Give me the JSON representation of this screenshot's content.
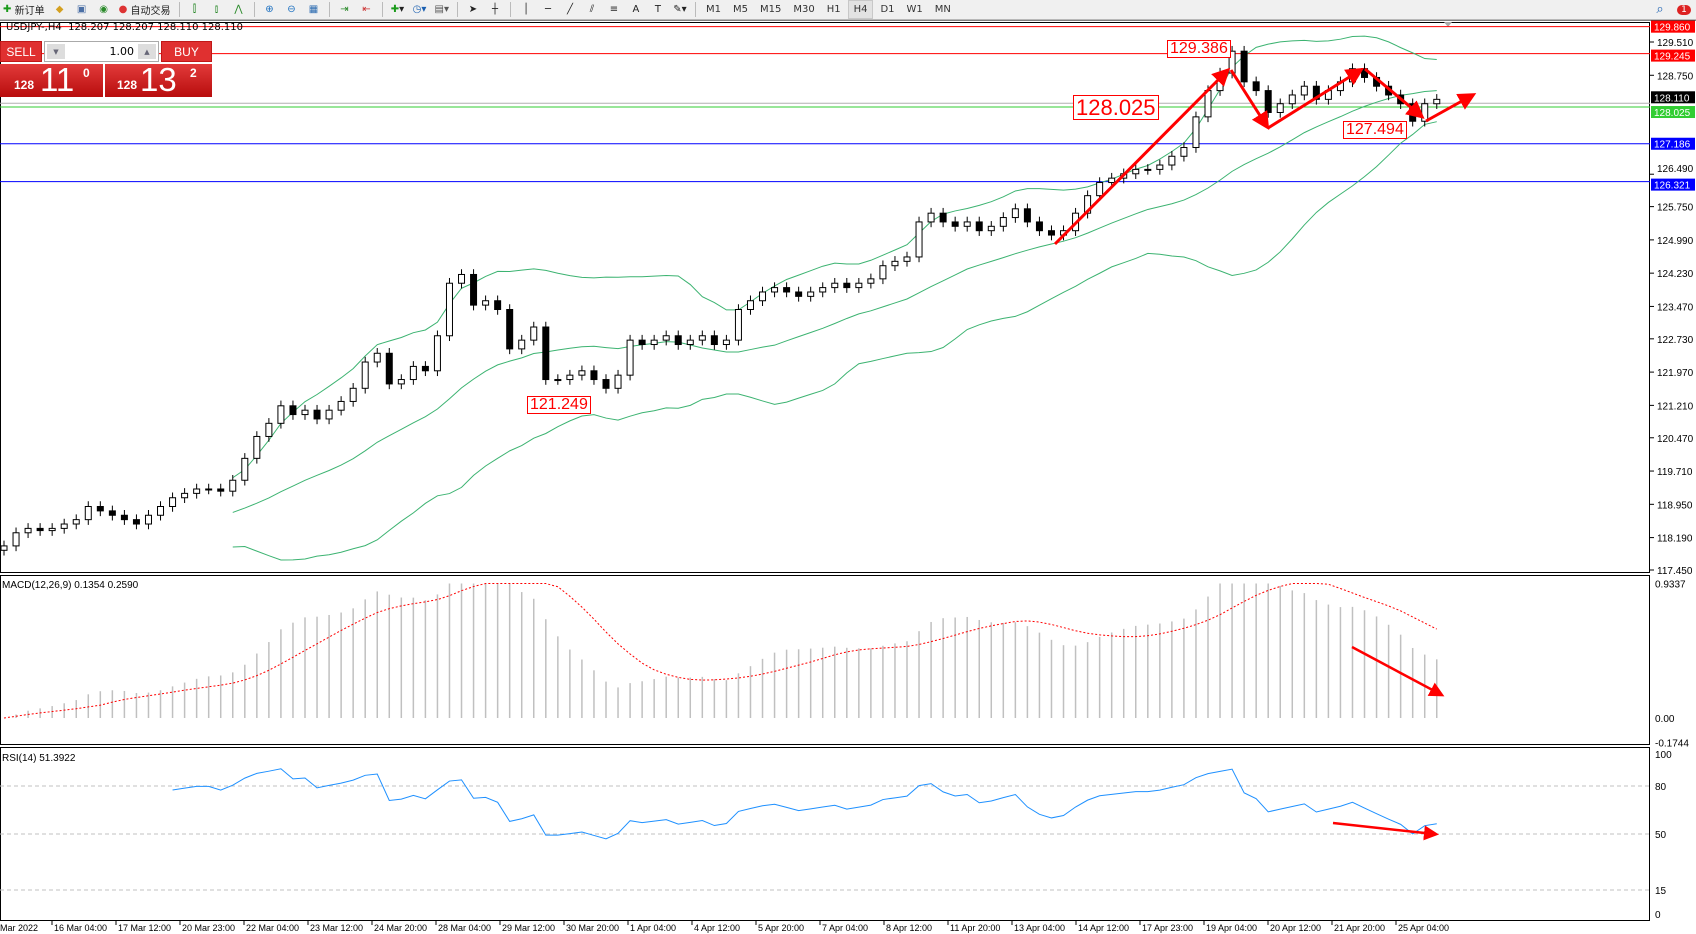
{
  "toolbar": {
    "new_order": "新订单",
    "auto_trading": "自动交易",
    "timeframes": [
      "M1",
      "M5",
      "M15",
      "M30",
      "H1",
      "H4",
      "D1",
      "W1",
      "MN"
    ],
    "active_timeframe": "H4",
    "notification_count": "1"
  },
  "chart_header": "USDJPY-,H4  128.207 128.207 128.110 128.110",
  "trade_panel": {
    "sell_label": "SELL",
    "buy_label": "BUY",
    "lot": "1.00",
    "sell_price": {
      "prefix": "128",
      "big": "11",
      "sup": "0"
    },
    "buy_price": {
      "prefix": "128",
      "big": "13",
      "sup": "2"
    }
  },
  "annotations": {
    "high": "129.386",
    "mid": "128.025",
    "low_recent": "127.494",
    "low_prior": "121.249"
  },
  "colors": {
    "up_candle": "#ffffff",
    "down_candle": "#000000",
    "bands": "#3cb371",
    "arrows": "#ff0000",
    "macd_hist": "#c0c0c0",
    "macd_signal": "#ff0000",
    "rsi": "#1e90ff"
  },
  "chart_data": [
    {
      "type": "candlestick",
      "symbol": "USDJPY-",
      "timeframe": "H4",
      "ylim": [
        117.45,
        129.86
      ],
      "y_ticks": [
        "129.510",
        "128.750",
        "126.490",
        "125.750",
        "124.990",
        "124.230",
        "123.470",
        "122.730",
        "121.970",
        "121.210",
        "120.470",
        "119.710",
        "118.950",
        "118.190",
        "117.450"
      ],
      "x_ticks": [
        "Mar 2022",
        "16 Mar 04:00",
        "17 Mar 12:00",
        "20 Mar 23:00",
        "22 Mar 04:00",
        "23 Mar 12:00",
        "24 Mar 20:00",
        "28 Mar 04:00",
        "29 Mar 12:00",
        "30 Mar 20:00",
        "1 Apr 04:00",
        "4 Apr 12:00",
        "5 Apr 20:00",
        "7 Apr 04:00",
        "8 Apr 12:00",
        "11 Apr 20:00",
        "13 Apr 04:00",
        "14 Apr 12:00",
        "17 Apr 23:00",
        "19 Apr 04:00",
        "20 Apr 12:00",
        "21 Apr 20:00",
        "25 Apr 04:00"
      ],
      "close": [
        118.0,
        118.3,
        118.4,
        118.35,
        118.4,
        118.5,
        118.6,
        118.9,
        118.8,
        118.7,
        118.6,
        118.5,
        118.7,
        118.9,
        119.1,
        119.2,
        119.3,
        119.3,
        119.25,
        119.5,
        120.0,
        120.5,
        120.8,
        121.2,
        121.0,
        121.1,
        120.9,
        121.1,
        121.3,
        121.6,
        122.2,
        122.4,
        121.7,
        121.8,
        122.1,
        122.0,
        122.8,
        124.0,
        124.2,
        123.5,
        123.6,
        123.4,
        122.5,
        122.7,
        123.0,
        121.8,
        121.8,
        121.9,
        122.0,
        121.8,
        121.6,
        121.9,
        122.7,
        122.6,
        122.7,
        122.8,
        122.6,
        122.7,
        122.8,
        122.6,
        122.7,
        123.4,
        123.6,
        123.8,
        123.9,
        123.8,
        123.7,
        123.8,
        123.9,
        124.0,
        123.9,
        124.0,
        124.1,
        124.4,
        124.5,
        124.6,
        125.4,
        125.6,
        125.4,
        125.3,
        125.4,
        125.2,
        125.3,
        125.5,
        125.7,
        125.4,
        125.2,
        125.1,
        125.2,
        125.6,
        126.0,
        126.3,
        126.4,
        126.5,
        126.6,
        126.6,
        126.7,
        126.9,
        127.1,
        127.8,
        128.4,
        128.8,
        129.3,
        128.6,
        128.4,
        127.9,
        128.1,
        128.3,
        128.5,
        128.2,
        128.4,
        128.6,
        128.9,
        128.7,
        128.5,
        128.3,
        128.1,
        127.7,
        128.1,
        128.2
      ],
      "indicators": [
        "Bollinger Bands"
      ],
      "levels": [
        {
          "value": "129.860",
          "color": "#ff0000"
        },
        {
          "value": "129.245",
          "color": "#ff0000"
        },
        {
          "value": "128.110",
          "color": "#000000"
        },
        {
          "value": "128.025",
          "color": "#32cd32"
        },
        {
          "value": "127.186",
          "color": "#0000ff"
        },
        {
          "value": "126.321",
          "color": "#0000ff"
        }
      ]
    },
    {
      "type": "bar",
      "title": "MACD(12,26,9) 0.1354 0.2590",
      "ylim": [
        -0.1744,
        0.9337
      ],
      "y_ticks": [
        "0.9337",
        "0.00",
        "-0.1744"
      ]
    },
    {
      "type": "line",
      "title": "RSI(14) 51.3922",
      "ylim": [
        0,
        100
      ],
      "y_ticks": [
        "100",
        "80",
        "50",
        "15",
        "0"
      ]
    }
  ]
}
